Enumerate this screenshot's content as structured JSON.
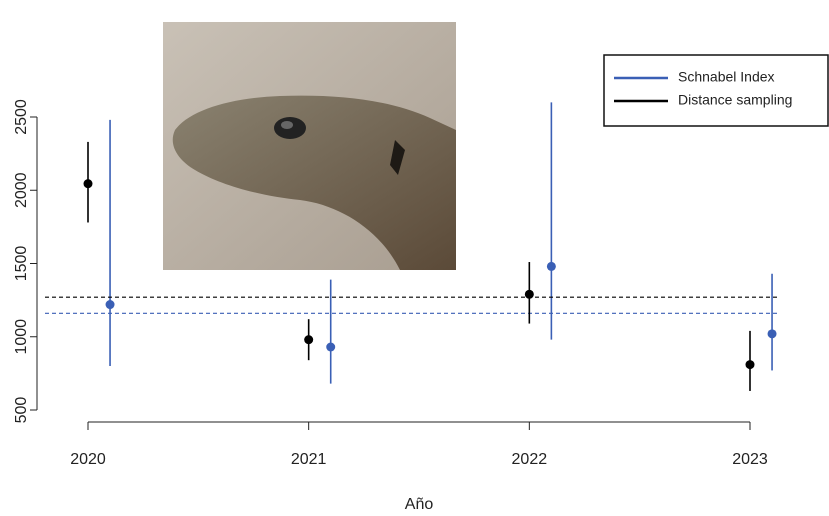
{
  "chart_data": {
    "type": "errorbar",
    "xlabel": "Año",
    "x": [
      2020,
      2021,
      2022,
      2023
    ],
    "xlim": [
      2020,
      2023
    ],
    "xticks": [
      2020,
      2021,
      2022,
      2023
    ],
    "ylim": [
      500,
      2500
    ],
    "yticks": [
      500,
      1000,
      1500,
      2000,
      2500
    ],
    "legend": "top-right",
    "series": [
      {
        "name": "Schnabel Index",
        "color": "#3a5fb5",
        "values": [
          1220,
          930,
          1480,
          1020
        ],
        "lower": [
          800,
          680,
          980,
          770
        ],
        "upper": [
          2480,
          1390,
          2600,
          1430
        ],
        "reference": 1160
      },
      {
        "name": "Distance sampling",
        "color": "#000000",
        "values": [
          2045,
          980,
          1290,
          810
        ],
        "lower": [
          1780,
          840,
          1090,
          630
        ],
        "upper": [
          2330,
          1120,
          1510,
          1040
        ],
        "reference": 1270
      }
    ]
  }
}
